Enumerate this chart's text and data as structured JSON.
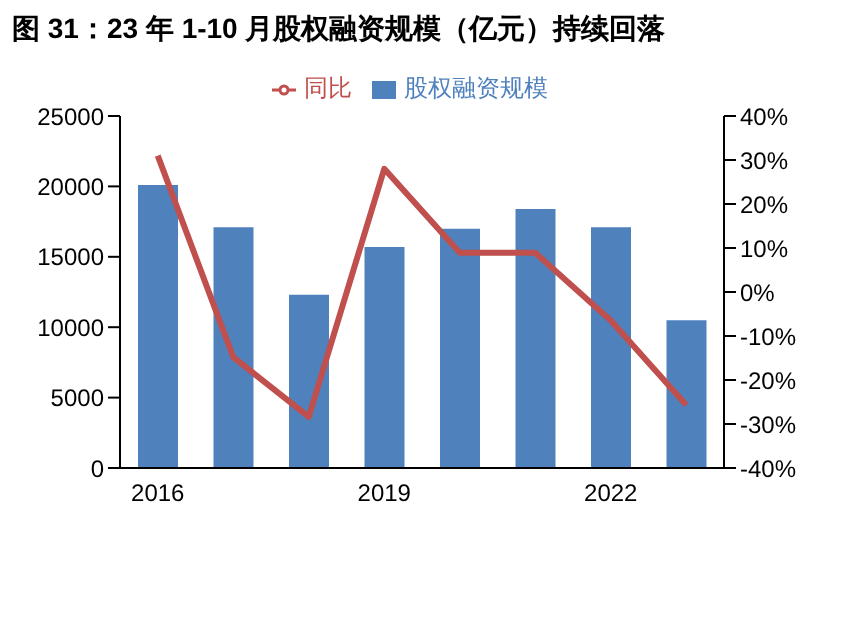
{
  "chart_data": {
    "type": "bar",
    "title": "图 31：23 年 1-10 月股权融资规模（亿元）持续回落",
    "categories": [
      "2016",
      null,
      null,
      "2019",
      null,
      null,
      "2022",
      null
    ],
    "series": [
      {
        "name": "股权融资规模",
        "color": "#4f81bd",
        "values": [
          20100,
          17100,
          12300,
          15700,
          17000,
          18400,
          17100,
          10500
        ]
      },
      {
        "name": "同比",
        "type": "line",
        "axis": "y2",
        "color": "#c0504d",
        "values": [
          31,
          -14.8,
          -28.4,
          28,
          8.9,
          8.9,
          -6.5,
          -25.7
        ]
      }
    ],
    "ylim": [
      0,
      25000
    ],
    "yticks": [
      0,
      5000,
      10000,
      15000,
      20000,
      25000
    ],
    "y2lim": [
      -40,
      40
    ],
    "y2ticks": [
      {
        "value": -40,
        "label": "-40%"
      },
      {
        "value": -30,
        "label": "-30%"
      },
      {
        "value": -20,
        "label": "-20%"
      },
      {
        "value": -10,
        "label": "-10%"
      },
      {
        "value": 0,
        "label": "0%"
      },
      {
        "value": 10,
        "label": "10%"
      },
      {
        "value": 20,
        "label": "20%"
      },
      {
        "value": 30,
        "label": "30%"
      },
      {
        "value": 40,
        "label": "40%"
      }
    ],
    "grid": false,
    "legend": "top",
    "marker": "none",
    "line_style": "solid"
  }
}
